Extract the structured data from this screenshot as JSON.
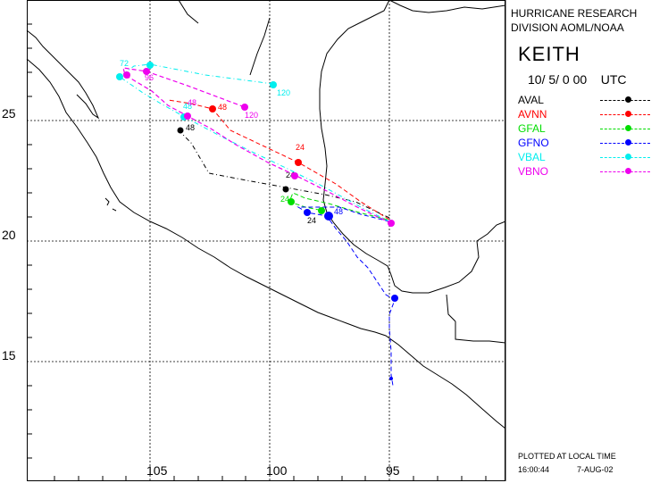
{
  "header": {
    "line1": "HURRICANE RESEARCH",
    "line2": "DIVISION AOML/NOAA"
  },
  "storm_name": "KEITH",
  "init_time": "10/ 5/ 0 00    UTC",
  "footer": {
    "note": "PLOTTED AT LOCAL TIME",
    "time": "16:00:44",
    "date": "7-AUG-02"
  },
  "axis": {
    "lat_labels": [
      "25",
      "20",
      "15"
    ],
    "lon_labels": [
      "105",
      "100",
      "95"
    ]
  },
  "legend": [
    {
      "name": "AVAL",
      "color": "#000000"
    },
    {
      "name": "AVNN",
      "color": "#ff0000"
    },
    {
      "name": "GFAL",
      "color": "#00dd00"
    },
    {
      "name": "GFNO",
      "color": "#0000ff"
    },
    {
      "name": "VBAL",
      "color": "#00eeee"
    },
    {
      "name": "VBNO",
      "color": "#ee00ee"
    }
  ],
  "tracks": {
    "AVAL": {
      "labels": [
        "24",
        "48"
      ]
    },
    "AVNN": {
      "labels": [
        "24",
        "48"
      ]
    },
    "GFAL": {
      "labels": [
        "24"
      ]
    },
    "GFNO": {
      "labels": [
        "24",
        "48"
      ]
    },
    "VBAL": {
      "labels": [
        "72",
        "120",
        "48"
      ]
    },
    "VBNO": {
      "labels": [
        "96",
        "120",
        "48"
      ]
    }
  }
}
